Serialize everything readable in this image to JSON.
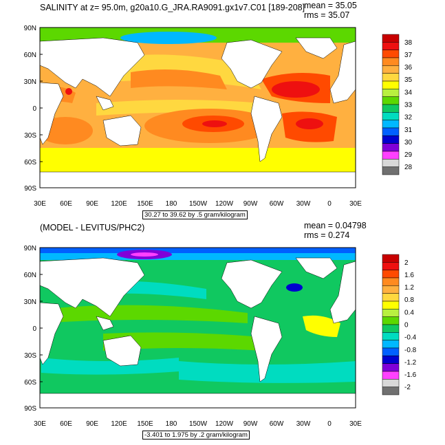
{
  "panels": [
    {
      "title": "SALINITY at z=  95.0m, g20a10.G_JRA.RA9091.gx1v7.C01 [189-208]",
      "mean_text": "mean = 35.05",
      "rms_text": "rms = 35.07",
      "range_text": "30.27 to 39.62 by .5 gram/kilogram",
      "colorbar": {
        "labels": [
          "38",
          "37",
          "36",
          "35",
          "34",
          "33",
          "32",
          "31",
          "30",
          "29",
          "28"
        ],
        "colors": [
          "#c80000",
          "#ee1010",
          "#ff4a00",
          "#ff8a20",
          "#ffb040",
          "#ffd840",
          "#ffff00",
          "#b8f040",
          "#5cd800",
          "#10c860",
          "#00dcc0",
          "#00b8ff",
          "#0060ff",
          "#0000d0",
          "#8000d8",
          "#ff40ff",
          "#d8d8d8",
          "#707070"
        ]
      }
    },
    {
      "title": "(MODEL - LEVITUS/PHC2)",
      "mean_text": "mean = 0.04798",
      "rms_text": "rms = 0.274",
      "range_text": "-3.401 to 1.975 by .2 gram/kilogram",
      "colorbar": {
        "labels": [
          "2",
          "1.6",
          "1.2",
          "0.8",
          "0.4",
          "0",
          "-0.4",
          "-0.8",
          "-1.2",
          "-1.6",
          "-2"
        ],
        "colors": [
          "#c80000",
          "#ee1010",
          "#ff4a00",
          "#ff8a20",
          "#ffb040",
          "#ffd840",
          "#ffff00",
          "#b8f040",
          "#5cd800",
          "#10c860",
          "#00dcc0",
          "#00b8ff",
          "#0060ff",
          "#0000d0",
          "#8000d8",
          "#ff40ff",
          "#d8d8d8",
          "#707070"
        ]
      }
    }
  ],
  "axes": {
    "x_ticks": [
      "30E",
      "60E",
      "90E",
      "120E",
      "150E",
      "180",
      "150W",
      "120W",
      "90W",
      "60W",
      "30W",
      "0",
      "30E"
    ],
    "y_ticks": [
      "90N",
      "60N",
      "30N",
      "0",
      "30S",
      "60S",
      "90S"
    ]
  }
}
